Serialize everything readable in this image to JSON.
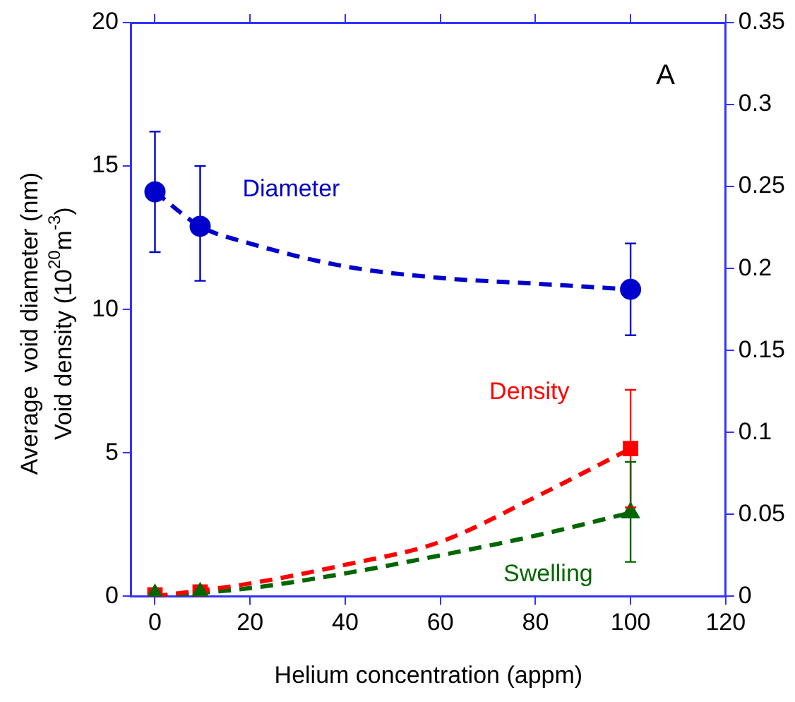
{
  "chart_data": {
    "type": "scatter",
    "xlabel": "Helium concentration (appm)",
    "ylabel": "Average  void diameter (nm)\nVoid density (10$^{20}$m$^{-3}$)",
    "annotations": [
      "A"
    ],
    "xlim": [
      -5,
      120
    ],
    "xticks": [
      0,
      20,
      40,
      60,
      80,
      100,
      120
    ],
    "ylim": [
      0,
      20
    ],
    "yticks": [
      0,
      5,
      10,
      15,
      20
    ],
    "y2lim": [
      0,
      0.35
    ],
    "y2ticks": [
      0,
      0.05,
      0.1,
      0.15,
      0.2,
      0.25,
      0.3,
      0.35
    ],
    "grid": false,
    "legend": false,
    "series": [
      {
        "name": "Diameter",
        "color": "#0000cc",
        "marker": "circle",
        "x": [
          0,
          9.5,
          100
        ],
        "values": [
          14.1,
          12.9,
          10.7
        ],
        "errors": [
          [
            12,
            16.2
          ],
          [
            11,
            15
          ],
          [
            9.1,
            12.3
          ]
        ]
      },
      {
        "type": "line",
        "color": "#0000cc",
        "line_style": "dashed",
        "marker": "none",
        "x": [
          0,
          9.5,
          20,
          40,
          60,
          80,
          100
        ],
        "values": [
          14.1,
          12.9,
          12.3,
          11.5,
          11.1,
          10.9,
          10.7
        ]
      },
      {
        "name": "Density",
        "color": "#ff0000",
        "marker": "square",
        "x": [
          0,
          9.5,
          100
        ],
        "values": [
          0.05,
          0.15,
          5.15
        ],
        "errors": [
          null,
          null,
          [
            3.1,
            7.2
          ]
        ]
      },
      {
        "type": "line",
        "color": "#ff0000",
        "line_style": "dashed",
        "marker": "none",
        "x": [
          0,
          20,
          40,
          60,
          80,
          100
        ],
        "values": [
          0,
          0.45,
          1.1,
          1.9,
          3.46,
          5.15
        ]
      },
      {
        "name": "Swelling",
        "axis": "y2",
        "color": "#006600",
        "marker": "triangle",
        "x": [
          0,
          9.5,
          100
        ],
        "values": [
          0.001,
          0.002,
          0.051
        ],
        "errors": [
          null,
          null,
          [
            0.021,
            0.082
          ]
        ]
      },
      {
        "type": "line",
        "axis": "y2",
        "color": "#006600",
        "line_style": "dashed",
        "marker": "none",
        "x": [
          0,
          20,
          40,
          60,
          80,
          100
        ],
        "values": [
          0,
          0.005,
          0.014,
          0.025,
          0.037,
          0.051
        ]
      }
    ]
  }
}
